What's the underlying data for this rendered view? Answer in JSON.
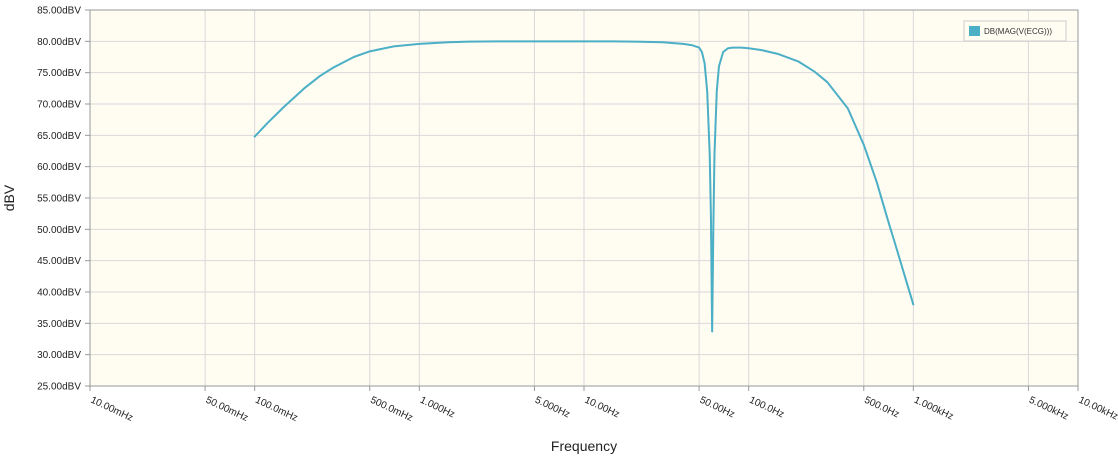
{
  "chart_data": {
    "type": "line",
    "title": "",
    "xlabel": "Frequency",
    "ylabel": "dBV",
    "x_scale": "log",
    "xlim_hz": [
      0.01,
      10000
    ],
    "ylim": [
      25,
      85
    ],
    "grid": true,
    "legend_position": "top-right",
    "y_ticks": [
      {
        "value": 85,
        "label": "85.00dBV"
      },
      {
        "value": 80,
        "label": "80.00dBV"
      },
      {
        "value": 75,
        "label": "75.00dBV"
      },
      {
        "value": 70,
        "label": "70.00dBV"
      },
      {
        "value": 65,
        "label": "65.00dBV"
      },
      {
        "value": 60,
        "label": "60.00dBV"
      },
      {
        "value": 55,
        "label": "55.00dBV"
      },
      {
        "value": 50,
        "label": "50.00dBV"
      },
      {
        "value": 45,
        "label": "45.00dBV"
      },
      {
        "value": 40,
        "label": "40.00dBV"
      },
      {
        "value": 35,
        "label": "35.00dBV"
      },
      {
        "value": 30,
        "label": "30.00dBV"
      },
      {
        "value": 25,
        "label": "25.00dBV"
      }
    ],
    "x_ticks": [
      {
        "value": 0.01,
        "label": "10.00mHz"
      },
      {
        "value": 0.05,
        "label": "50.00mHz"
      },
      {
        "value": 0.1,
        "label": "100.0mHz"
      },
      {
        "value": 0.5,
        "label": "500.0mHz"
      },
      {
        "value": 1,
        "label": "1.000Hz"
      },
      {
        "value": 5,
        "label": "5.000Hz"
      },
      {
        "value": 10,
        "label": "10.00Hz"
      },
      {
        "value": 50,
        "label": "50.00Hz"
      },
      {
        "value": 100,
        "label": "100.0Hz"
      },
      {
        "value": 500,
        "label": "500.0Hz"
      },
      {
        "value": 1000,
        "label": "1.000kHz"
      },
      {
        "value": 5000,
        "label": "5.000kHz"
      },
      {
        "value": 10000,
        "label": "10.00kHz"
      }
    ],
    "series": [
      {
        "name": "DB(MAG(V(ECG)))",
        "color": "#4bafc6",
        "x": [
          0.1,
          0.12,
          0.15,
          0.2,
          0.25,
          0.3,
          0.4,
          0.5,
          0.7,
          1,
          1.5,
          2,
          3,
          5,
          7,
          10,
          15,
          20,
          30,
          40,
          45,
          50,
          52,
          54,
          56,
          58,
          59,
          60,
          61,
          62,
          64,
          66,
          70,
          75,
          80,
          90,
          100,
          120,
          150,
          200,
          250,
          300,
          400,
          500,
          600,
          700,
          800,
          900,
          1000
        ],
        "values": [
          64.8,
          67.0,
          69.5,
          72.5,
          74.5,
          75.8,
          77.5,
          78.4,
          79.2,
          79.6,
          79.85,
          79.95,
          80.0,
          80.0,
          80.0,
          80.0,
          80.0,
          79.95,
          79.85,
          79.6,
          79.4,
          79.0,
          78.3,
          76.5,
          72.0,
          62.0,
          52.0,
          33.7,
          50.0,
          62.0,
          72.0,
          76.0,
          78.3,
          78.9,
          79.0,
          79.0,
          78.9,
          78.6,
          78.0,
          76.8,
          75.2,
          73.5,
          69.3,
          63.5,
          57.5,
          51.5,
          46.5,
          42.0,
          38.0
        ]
      }
    ]
  }
}
